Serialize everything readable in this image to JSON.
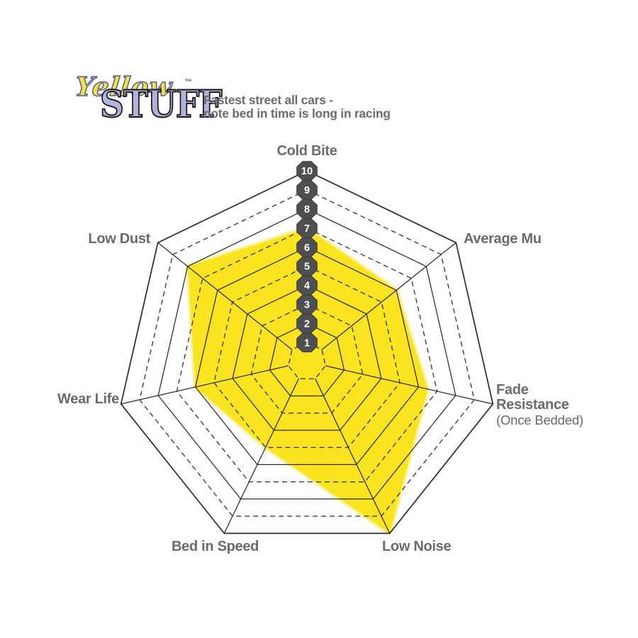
{
  "logo": {
    "word1": "Yellow",
    "word2": "STUFF",
    "trademark": "™"
  },
  "header": {
    "line1": "Fastest street all cars -",
    "line2": "note bed in time is long in racing"
  },
  "axis_labels": {
    "cold_bite": "Cold Bite",
    "average_mu": "Average Mu",
    "fade_line1": "Fade",
    "fade_line2": "Resistance",
    "fade_line3": "(Once Bedded)",
    "low_noise": "Low Noise",
    "bed_in_speed": "Bed in Speed",
    "wear_life": "Wear Life",
    "low_dust": "Low Dust"
  },
  "chart_data": {
    "type": "radar",
    "categories": [
      "Cold Bite",
      "Average Mu",
      "Fade Resistance (Once Bedded)",
      "Low Noise",
      "Bed in Speed",
      "Wear Life",
      "Low Dust"
    ],
    "series": [
      {
        "name": "Yellowstuff",
        "values": [
          7,
          6,
          6.5,
          10,
          5,
          6,
          8
        ]
      }
    ],
    "scale": {
      "min": 0,
      "max": 10,
      "ticks": [
        "1",
        "2",
        "3",
        "4",
        "5",
        "6",
        "7",
        "8",
        "9",
        "10"
      ],
      "tick_axis": "Cold Bite"
    },
    "grid": {
      "rings": 10,
      "shape": "heptagon",
      "solid_rings": "even values",
      "dashed_rings": "odd values",
      "spokes_start_at_ring": 1
    },
    "colors": {
      "fill": "#F9E41F",
      "fill_halo": "#FBF2A2",
      "grid_line": "#2B2B2B",
      "badge_fill": "#4E4F51",
      "badge_stroke": "#3A3B3D",
      "badge_text": "#FFFFFF",
      "label_text": "#6A6B6E"
    }
  }
}
